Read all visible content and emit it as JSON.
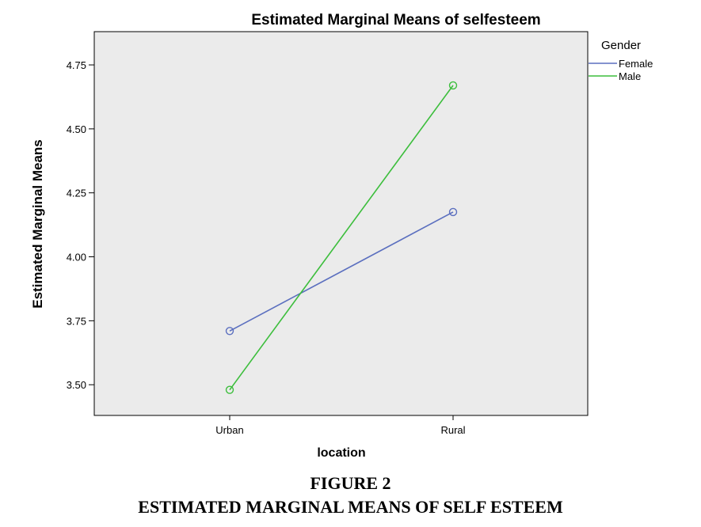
{
  "chart_data": {
    "type": "line",
    "title": "Estimated Marginal Means of selfesteem",
    "xlabel": "location",
    "ylabel": "Estimated Marginal Means",
    "categories": [
      "Urban",
      "Rural"
    ],
    "ylim": [
      3.38,
      4.88
    ],
    "yticks": [
      "3.50",
      "3.75",
      "4.00",
      "4.25",
      "4.50",
      "4.75"
    ],
    "grid": false,
    "legend_title": "Gender",
    "legend_position": "right",
    "series": [
      {
        "name": "Female",
        "values": [
          3.71,
          4.175
        ],
        "color": "#5b6fbf"
      },
      {
        "name": "Male",
        "values": [
          3.48,
          4.67
        ],
        "color": "#3cbe3c"
      }
    ],
    "plot_background": "#ebebeb"
  },
  "caption": {
    "figure_label": "FIGURE 2",
    "text": "ESTIMATED MARGINAL MEANS OF SELF ESTEEM"
  }
}
